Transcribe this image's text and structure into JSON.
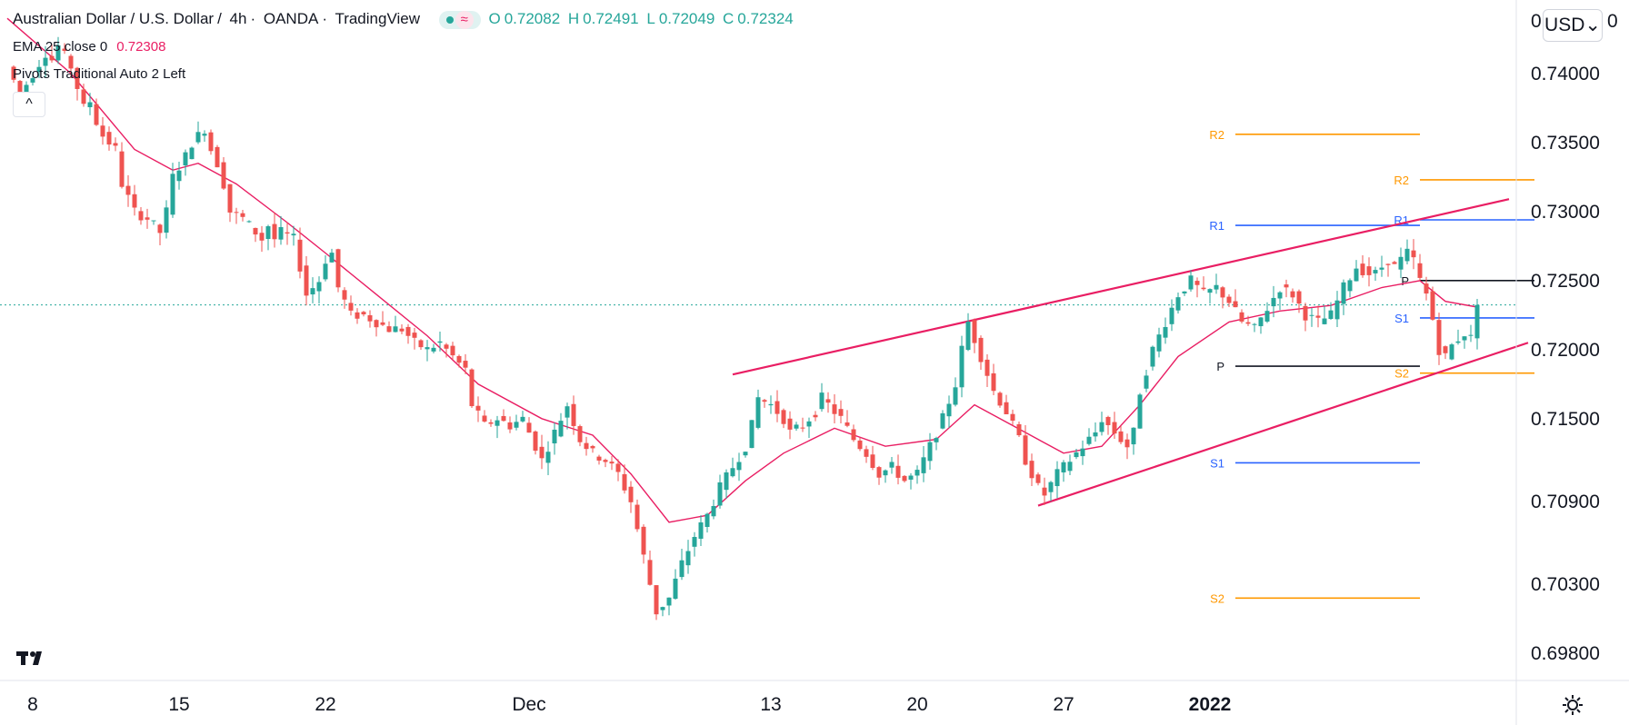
{
  "header": {
    "symbol": "Australian Dollar / U.S. Dollar",
    "interval": "4h",
    "exchange": "OANDA",
    "platform": "TradingView",
    "ohlc": {
      "o_label": "O",
      "o": "0.72082",
      "h_label": "H",
      "h": "0.72491",
      "l_label": "L",
      "l": "0.72049",
      "c_label": "C",
      "c": "0.72324"
    }
  },
  "indicators": {
    "ema_label": "EMA 25 close 0",
    "ema_value": "0.72308",
    "pivots_label": "Pivots Traditional Auto 2 Left"
  },
  "buttons": {
    "collapse": "^",
    "currency": "USD⌄"
  },
  "side_zero_left": "0",
  "side_zero_right": "0",
  "colors": {
    "up": "#26a69a",
    "down": "#ef5350",
    "ema": "#e91e63",
    "channel": "#e91e63",
    "pivot_p": "#131722",
    "pivot_r1_s1": "#2962ff",
    "pivot_r2_s2": "#ff9800",
    "last_price": "#26a69a"
  },
  "chart_data": {
    "type": "candlestick",
    "title": "Australian Dollar / U.S. Dollar, 4h, OANDA",
    "x_tick_labels": [
      "8",
      "15",
      "22",
      "Dec",
      "13",
      "20",
      "27",
      "2022"
    ],
    "y_tick_labels": [
      "0.74000",
      "0.73500",
      "0.73000",
      "0.72500",
      "0.72000",
      "0.71500",
      "0.70900",
      "0.70300",
      "0.69800"
    ],
    "y_ticks": [
      0.74,
      0.735,
      0.73,
      0.725,
      0.72,
      0.715,
      0.709,
      0.703,
      0.698
    ],
    "ylim": [
      0.6961,
      0.7448
    ],
    "last_close": 0.72324,
    "price_path": [
      [
        0,
        0.7405
      ],
      [
        2,
        0.7385
      ],
      [
        4,
        0.74
      ],
      [
        6,
        0.7415
      ],
      [
        7,
        0.741
      ],
      [
        8,
        0.742
      ],
      [
        10,
        0.7405
      ],
      [
        12,
        0.7375
      ],
      [
        13,
        0.738
      ],
      [
        14,
        0.7365
      ],
      [
        15,
        0.7355
      ],
      [
        17,
        0.7345
      ],
      [
        18,
        0.732
      ],
      [
        20,
        0.73
      ],
      [
        22,
        0.7295
      ],
      [
        24,
        0.7285
      ],
      [
        25,
        0.73
      ],
      [
        26,
        0.7325
      ],
      [
        28,
        0.734
      ],
      [
        29,
        0.735
      ],
      [
        31,
        0.736
      ],
      [
        32,
        0.7345
      ],
      [
        33,
        0.7335
      ],
      [
        34,
        0.732
      ],
      [
        35,
        0.73
      ],
      [
        37,
        0.7295
      ],
      [
        39,
        0.7285
      ],
      [
        40,
        0.728
      ],
      [
        41,
        0.729
      ],
      [
        42,
        0.728
      ],
      [
        43,
        0.7285
      ],
      [
        45,
        0.728
      ],
      [
        46,
        0.726
      ],
      [
        47,
        0.724
      ],
      [
        49,
        0.725
      ],
      [
        50,
        0.7265
      ],
      [
        51,
        0.727
      ],
      [
        52,
        0.7245
      ],
      [
        54,
        0.7225
      ],
      [
        56,
        0.7225
      ],
      [
        58,
        0.722
      ],
      [
        60,
        0.7215
      ],
      [
        62,
        0.7215
      ],
      [
        64,
        0.7205
      ],
      [
        66,
        0.72
      ],
      [
        68,
        0.7205
      ],
      [
        70,
        0.7195
      ],
      [
        72,
        0.7185
      ],
      [
        73,
        0.716
      ],
      [
        75,
        0.7145
      ],
      [
        77,
        0.715
      ],
      [
        79,
        0.7145
      ],
      [
        81,
        0.715
      ],
      [
        82,
        0.714
      ],
      [
        84,
        0.712
      ],
      [
        85,
        0.713
      ],
      [
        87,
        0.715
      ],
      [
        88,
        0.716
      ],
      [
        90,
        0.7135
      ],
      [
        92,
        0.7125
      ],
      [
        94,
        0.712
      ],
      [
        96,
        0.711
      ],
      [
        97,
        0.71
      ],
      [
        98,
        0.709
      ],
      [
        99,
        0.707
      ],
      [
        100,
        0.705
      ],
      [
        101,
        0.703
      ],
      [
        102,
        0.701
      ],
      [
        104,
        0.702
      ],
      [
        106,
        0.7045
      ],
      [
        108,
        0.7065
      ],
      [
        110,
        0.708
      ],
      [
        112,
        0.71
      ],
      [
        114,
        0.7115
      ],
      [
        116,
        0.713
      ],
      [
        117,
        0.7145
      ],
      [
        118,
        0.7165
      ],
      [
        120,
        0.716
      ],
      [
        122,
        0.715
      ],
      [
        123,
        0.714
      ],
      [
        125,
        0.7145
      ],
      [
        127,
        0.7155
      ],
      [
        128,
        0.7165
      ],
      [
        129,
        0.716
      ],
      [
        131,
        0.715
      ],
      [
        133,
        0.7135
      ],
      [
        135,
        0.7125
      ],
      [
        137,
        0.711
      ],
      [
        139,
        0.7115
      ],
      [
        141,
        0.7105
      ],
      [
        143,
        0.711
      ],
      [
        145,
        0.713
      ],
      [
        147,
        0.715
      ],
      [
        149,
        0.7175
      ],
      [
        150,
        0.72
      ],
      [
        151,
        0.722
      ],
      [
        153,
        0.7195
      ],
      [
        155,
        0.717
      ],
      [
        157,
        0.7155
      ],
      [
        159,
        0.7135
      ],
      [
        160,
        0.712
      ],
      [
        162,
        0.71
      ],
      [
        163,
        0.7095
      ],
      [
        165,
        0.711
      ],
      [
        167,
        0.712
      ],
      [
        169,
        0.713
      ],
      [
        171,
        0.714
      ],
      [
        172,
        0.715
      ],
      [
        174,
        0.714
      ],
      [
        176,
        0.713
      ],
      [
        177,
        0.714
      ],
      [
        178,
        0.717
      ],
      [
        180,
        0.72
      ],
      [
        182,
        0.722
      ],
      [
        184,
        0.724
      ],
      [
        186,
        0.725
      ],
      [
        188,
        0.724
      ],
      [
        190,
        0.7245
      ],
      [
        192,
        0.7235
      ],
      [
        194,
        0.722
      ],
      [
        196,
        0.7215
      ],
      [
        198,
        0.723
      ],
      [
        200,
        0.7245
      ],
      [
        202,
        0.724
      ],
      [
        204,
        0.7225
      ],
      [
        206,
        0.722
      ],
      [
        208,
        0.7225
      ],
      [
        210,
        0.7245
      ],
      [
        212,
        0.726
      ],
      [
        214,
        0.7255
      ],
      [
        215,
        0.7255
      ],
      [
        217,
        0.7265
      ],
      [
        218,
        0.726
      ],
      [
        220,
        0.727
      ],
      [
        221,
        0.7265
      ],
      [
        222,
        0.725
      ],
      [
        223,
        0.724
      ],
      [
        224,
        0.7222
      ],
      [
        225,
        0.72
      ],
      [
        226,
        0.7195
      ],
      [
        227,
        0.7203
      ],
      [
        228,
        0.7208
      ],
      [
        229,
        0.7212
      ],
      [
        230,
        0.72082
      ],
      [
        231,
        0.72324
      ]
    ],
    "ema_path": [
      [
        0,
        0.744
      ],
      [
        10,
        0.74
      ],
      [
        20,
        0.7345
      ],
      [
        26,
        0.733
      ],
      [
        30,
        0.7335
      ],
      [
        36,
        0.732
      ],
      [
        44,
        0.7292
      ],
      [
        50,
        0.727
      ],
      [
        58,
        0.724
      ],
      [
        66,
        0.721
      ],
      [
        74,
        0.7175
      ],
      [
        84,
        0.715
      ],
      [
        92,
        0.7138
      ],
      [
        98,
        0.711
      ],
      [
        104,
        0.7075
      ],
      [
        110,
        0.708
      ],
      [
        116,
        0.7105
      ],
      [
        122,
        0.7125
      ],
      [
        130,
        0.7143
      ],
      [
        138,
        0.713
      ],
      [
        146,
        0.7135
      ],
      [
        152,
        0.716
      ],
      [
        158,
        0.7145
      ],
      [
        166,
        0.7125
      ],
      [
        172,
        0.713
      ],
      [
        178,
        0.716
      ],
      [
        184,
        0.7195
      ],
      [
        192,
        0.722
      ],
      [
        200,
        0.7228
      ],
      [
        208,
        0.7232
      ],
      [
        216,
        0.7245
      ],
      [
        222,
        0.725
      ],
      [
        226,
        0.7235
      ],
      [
        231,
        0.72308
      ]
    ],
    "channel_lines": [
      {
        "name": "upper",
        "from": [
          114,
          0.7182
        ],
        "to": [
          236,
          0.7309
        ]
      },
      {
        "name": "lower",
        "from": [
          162,
          0.7087
        ],
        "to": [
          239,
          0.7205
        ]
      }
    ],
    "pivot_levels": [
      {
        "label": "R2",
        "value": 0.7356,
        "from": 193,
        "to": 222,
        "color": "#ff9800"
      },
      {
        "label": "R1",
        "value": 0.729,
        "from": 193,
        "to": 222,
        "color": "#2962ff"
      },
      {
        "label": "P",
        "value": 0.7188,
        "from": 193,
        "to": 222,
        "color": "#131722"
      },
      {
        "label": "S1",
        "value": 0.7118,
        "from": 193,
        "to": 222,
        "color": "#2962ff"
      },
      {
        "label": "S2",
        "value": 0.702,
        "from": 193,
        "to": 222,
        "color": "#ff9800"
      },
      {
        "label": "R2",
        "value": 0.7323,
        "from": 222,
        "to": 240,
        "color": "#ff9800"
      },
      {
        "label": "R1",
        "value": 0.7294,
        "from": 222,
        "to": 240,
        "color": "#2962ff"
      },
      {
        "label": "P",
        "value": 0.725,
        "from": 222,
        "to": 240,
        "color": "#131722"
      },
      {
        "label": "S1",
        "value": 0.7223,
        "from": 222,
        "to": 240,
        "color": "#2962ff"
      },
      {
        "label": "S2",
        "value": 0.7183,
        "from": 222,
        "to": 240,
        "color": "#ff9800"
      }
    ]
  }
}
